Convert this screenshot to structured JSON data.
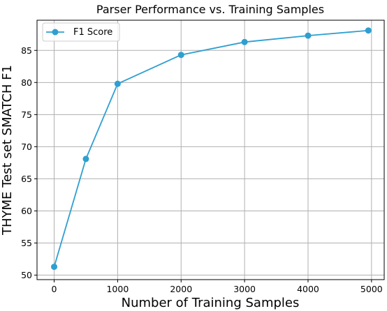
{
  "chart_data": {
    "type": "line",
    "title": "Parser Performance vs. Training Samples",
    "xlabel": "Number of Training Samples",
    "ylabel": "THYME Test set SMATCH F1",
    "x": [
      0,
      500,
      1000,
      2000,
      3000,
      4000,
      4950
    ],
    "series": [
      {
        "name": "F1 Score",
        "values": [
          51.3,
          68.1,
          79.8,
          84.3,
          86.3,
          87.3,
          88.1
        ],
        "color": "#2e9fd0"
      }
    ],
    "xlim": [
      -270,
      5200
    ],
    "ylim": [
      49.3,
      89.7
    ],
    "xticks": [
      0,
      1000,
      2000,
      3000,
      4000,
      5000
    ],
    "yticks": [
      50,
      55,
      60,
      65,
      70,
      75,
      80,
      85
    ],
    "grid": true,
    "legend_position": "top-left"
  }
}
